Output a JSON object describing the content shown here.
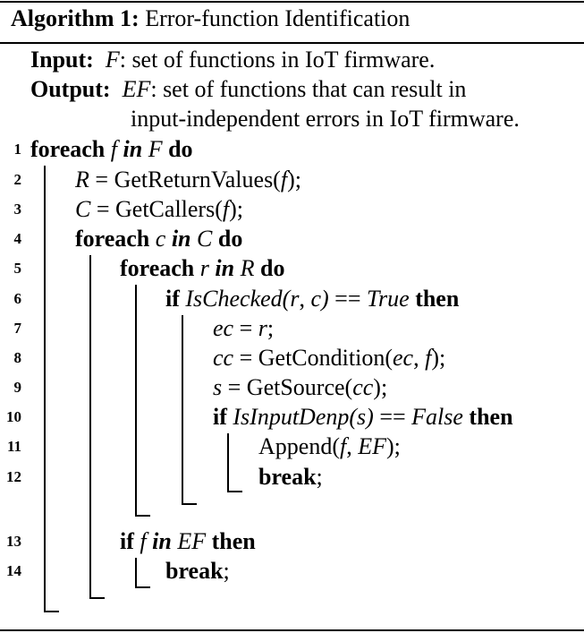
{
  "algorithm": {
    "caption_label": "Algorithm 1:",
    "caption_title": "Error-function Identification",
    "input_keyword": "Input:",
    "input_var": "F",
    "input_text": ": set of functions in IoT firmware.",
    "output_keyword": "Output:",
    "output_var": "EF",
    "output_text_1": ": set of functions that can result in",
    "output_text_2": "input-independent errors in IoT firmware.",
    "kw_foreach": "foreach",
    "kw_in": "in",
    "kw_do": "do",
    "kw_if": "if",
    "kw_then": "then",
    "kw_break": "break",
    "lines": [
      {
        "no": "1",
        "var": "f",
        "set": "F"
      },
      {
        "no": "2",
        "lhs": "R",
        "eq": " = ",
        "fn": "GetReturnValues(",
        "arg": "f",
        "close": ");"
      },
      {
        "no": "3",
        "lhs": "C",
        "eq": " = ",
        "fn": "GetCallers(",
        "arg": "f",
        "close": ");"
      },
      {
        "no": "4",
        "var": "c",
        "set": "C"
      },
      {
        "no": "5",
        "var": "r",
        "set": "R"
      },
      {
        "no": "6",
        "cond": "IsChecked(",
        "arg1": "r",
        "sep": ", ",
        "arg2": "c",
        "close": ")",
        "op": " == ",
        "value": "True"
      },
      {
        "no": "7",
        "lhs": "ec",
        "eq": " = ",
        "rhs": "r",
        "close": ";"
      },
      {
        "no": "8",
        "lhs": "cc",
        "eq": " = ",
        "fn": "GetCondition(",
        "arg1": "ec",
        "sep": ", ",
        "arg2": "f",
        "close": ");"
      },
      {
        "no": "9",
        "lhs": "s",
        "eq": " = ",
        "fn": "GetSource(",
        "arg": "cc",
        "close": ");"
      },
      {
        "no": "10",
        "cond": "IsInputDenp(",
        "arg": "s",
        "close": ")",
        "op": " == ",
        "value": "False"
      },
      {
        "no": "11",
        "fn": "Append(",
        "arg1": "f",
        "sep": ", ",
        "arg2": "EF",
        "close": ");"
      },
      {
        "no": "12",
        "punct": ";"
      },
      {
        "no": "13",
        "var": "f",
        "set": "EF"
      },
      {
        "no": "14",
        "punct": ";"
      }
    ]
  }
}
